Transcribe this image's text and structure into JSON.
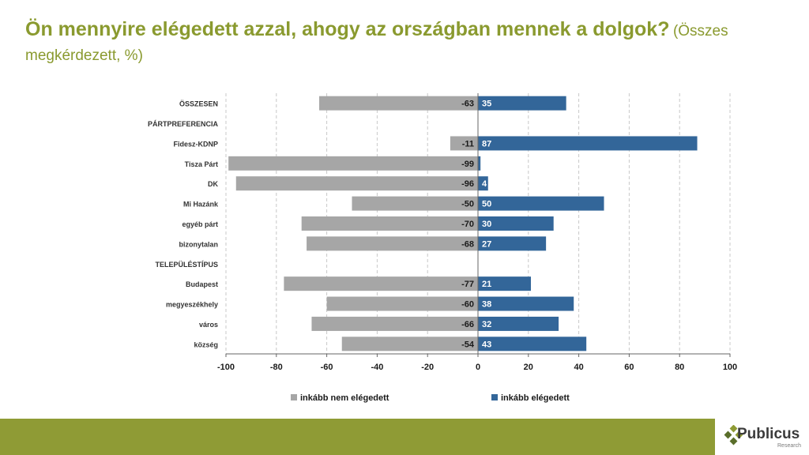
{
  "title": {
    "main": "Ön mennyire elégedett azzal, ahogy az országban mennek a dolgok?",
    "sub": "(Összes megkérdezett, %)"
  },
  "chart_data": {
    "type": "bar",
    "orientation": "horizontal",
    "stacked": "diverging",
    "categories": [
      "ÖSSZESEN",
      "PÁRTPREFERENCIA",
      "Fidesz-KDNP",
      "Tisza Párt",
      "DK",
      "Mi Hazánk",
      "egyéb párt",
      "bizonytalan",
      "TELEPÜLÉSTÍPUS",
      "Budapest",
      "megyeszékhely",
      "város",
      "község"
    ],
    "series": [
      {
        "name": "inkább nem elégedett",
        "color": "#a6a6a6",
        "values": [
          -63,
          null,
          -11,
          -99,
          -96,
          -50,
          -70,
          -68,
          null,
          -77,
          -60,
          -66,
          -54
        ]
      },
      {
        "name": "inkább elégedett",
        "color": "#336699",
        "values": [
          35,
          null,
          87,
          1,
          4,
          50,
          30,
          27,
          null,
          21,
          38,
          32,
          43
        ]
      }
    ],
    "data_labels": {
      "inkább nem elégedett": [
        "-63",
        "",
        "-11",
        "-99",
        "-96",
        "-50",
        "-70",
        "-68",
        "",
        "-77",
        "-60",
        "-66",
        "-54"
      ],
      "inkább elégedett": [
        "35",
        "",
        "87",
        "",
        "4",
        "50",
        "30",
        "27",
        "",
        "21",
        "38",
        "32",
        "43"
      ]
    },
    "xlim": [
      -100,
      100
    ],
    "xticks": [
      -100,
      -80,
      -60,
      -40,
      -20,
      0,
      20,
      40,
      60,
      80,
      100
    ],
    "grid": "vertical-dashed",
    "legend": "bottom"
  },
  "logo": {
    "name": "Publicus",
    "sub": "Research"
  },
  "colors": {
    "title": "#8a9a2f",
    "footer": "#8f9b35"
  }
}
